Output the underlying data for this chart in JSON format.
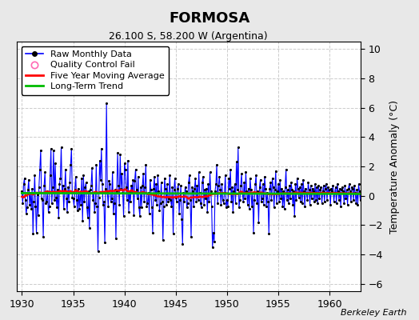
{
  "title": "FORMOSA",
  "subtitle": "26.100 S, 58.200 W (Argentina)",
  "ylabel": "Temperature Anomaly (°C)",
  "credit": "Berkeley Earth",
  "xlim": [
    1929.5,
    1963.0
  ],
  "ylim": [
    -6.5,
    10.5
  ],
  "yticks": [
    -6,
    -4,
    -2,
    0,
    2,
    4,
    6,
    8,
    10
  ],
  "xticks": [
    1930,
    1935,
    1940,
    1945,
    1950,
    1955,
    1960
  ],
  "fig_bg_color": "#e8e8e8",
  "plot_bg_color": "#ffffff",
  "grid_color": "#cccccc",
  "raw_color": "#0000ff",
  "ma_color": "#ff0000",
  "trend_color": "#00bb00",
  "qc_color": "#ff69b4",
  "raw_monthly": [
    0.3,
    -0.5,
    0.8,
    1.2,
    -0.3,
    -1.2,
    -0.8,
    0.4,
    1.1,
    -0.6,
    0.2,
    -0.9,
    0.5,
    -2.6,
    -0.4,
    1.4,
    -0.7,
    -2.5,
    0.1,
    -1.3,
    0.6,
    1.8,
    3.1,
    -0.2,
    -0.3,
    -2.8,
    0.7,
    1.6,
    -0.5,
    -0.4,
    0.3,
    -1.1,
    -0.7,
    1.4,
    3.2,
    -0.5,
    0.6,
    3.1,
    -0.3,
    2.2,
    -0.1,
    -0.8,
    0.4,
    -1.5,
    0.8,
    1.2,
    3.3,
    0.3,
    0.7,
    -0.9,
    0.5,
    1.8,
    -0.2,
    -1.1,
    0.6,
    -0.4,
    0.9,
    2.1,
    3.2,
    -0.1,
    -0.2,
    -0.7,
    0.4,
    1.3,
    -0.3,
    -1.0,
    0.5,
    -0.9,
    0.2,
    -0.6,
    1.2,
    -1.7,
    1.4,
    -0.4,
    0.6,
    0.9,
    -0.8,
    -1.5,
    0.3,
    -2.2,
    0.4,
    0.7,
    1.9,
    -0.3,
    0.2,
    -1.1,
    -0.5,
    2.1,
    -0.7,
    -3.8,
    -0.1,
    2.4,
    1.1,
    3.2,
    0.8,
    -0.6,
    -0.4,
    -3.2,
    0.5,
    6.3,
    0.2,
    -0.7,
    1.0,
    0.8,
    -0.4,
    -0.2,
    1.6,
    -1.2,
    -0.5,
    0.4,
    -2.9,
    0.3,
    2.9,
    0.7,
    -0.6,
    2.8,
    0.5,
    1.5,
    0.2,
    -1.4,
    2.2,
    1.8,
    0.6,
    -0.3,
    2.4,
    -1.1,
    0.3,
    -0.4,
    0.7,
    0.2,
    1.1,
    -1.3,
    1.0,
    1.8,
    0.4,
    -0.2,
    1.3,
    -0.8,
    -1.4,
    0.6,
    -0.8,
    0.7,
    1.5,
    -0.4,
    0.6,
    2.1,
    -0.7,
    -0.5,
    0.2,
    -1.2,
    1.1,
    0.4,
    -0.8,
    -2.5,
    0.5,
    1.3,
    -0.3,
    0.8,
    -0.6,
    1.4,
    0.3,
    -1.0,
    -0.5,
    0.9,
    -0.4,
    -3.0,
    -0.7,
    1.2,
    0.5,
    -0.6,
    0.8,
    -0.4,
    -0.2,
    1.4,
    -0.3,
    -0.7,
    0.6,
    -2.6,
    0.4,
    1.2,
    -0.1,
    -0.4,
    0.5,
    0.8,
    -1.2,
    -0.3,
    0.7,
    -1.6,
    -3.3,
    0.2,
    -0.4,
    0.6,
    0.3,
    -0.8,
    -0.5,
    0.9,
    1.4,
    -0.3,
    -2.8,
    0.6,
    0.3,
    -0.7,
    0.5,
    1.2,
    -0.4,
    0.7,
    -0.3,
    1.6,
    0.2,
    -0.5,
    -0.8,
    0.9,
    1.3,
    -0.6,
    0.4,
    -0.2,
    0.5,
    -1.1,
    0.8,
    -0.4,
    1.6,
    0.3,
    -0.7,
    -3.5,
    -2.5,
    -3.1,
    0.3,
    0.8,
    2.1,
    -0.5,
    0.7,
    1.3,
    0.4,
    -0.6,
    0.8,
    -0.3,
    -0.5,
    0.2,
    1.4,
    -0.8,
    -0.3,
    -0.7,
    1.2,
    0.5,
    1.8,
    -0.4,
    0.6,
    -1.1,
    0.3,
    0.8,
    -0.5,
    2.3,
    0.4,
    3.3,
    -0.8,
    -0.3,
    0.7,
    1.5,
    0.2,
    -0.4,
    0.9,
    -0.2,
    1.6,
    0.3,
    -0.6,
    0.5,
    -0.9,
    1.2,
    0.4,
    -0.7,
    0.2,
    -2.5,
    -0.3,
    0.8,
    1.4,
    -0.5,
    0.3,
    -1.8,
    0.6,
    1.1,
    -0.4,
    -0.2,
    0.8,
    -0.6,
    1.3,
    0.5,
    -0.7,
    0.2,
    -0.4,
    -2.6,
    0.5,
    0.9,
    -0.3,
    1.2,
    0.6,
    -0.8,
    0.4,
    1.7,
    -0.5,
    0.3,
    0.8,
    -0.4,
    1.1,
    -0.2,
    0.5,
    -0.7,
    0.3,
    -0.9,
    0.6,
    1.8,
    -0.3,
    0.4,
    -0.5,
    0.7,
    -0.2,
    0.9,
    0.4,
    -0.6,
    0.3,
    -1.4,
    0.8,
    -0.3,
    1.2,
    0.5,
    -0.1,
    0.6,
    -0.4,
    0.8,
    -0.5,
    1.1,
    0.3,
    -0.7,
    0.5,
    0.2,
    -0.3,
    0.9,
    0.4,
    -0.6,
    0.7,
    -0.2,
    0.5,
    0.3,
    -0.4,
    0.8,
    -0.3,
    0.6,
    -0.5,
    0.7,
    -0.2,
    0.4,
    0.6,
    -0.5,
    0.3,
    0.7,
    -0.4,
    0.5,
    0.8,
    -0.3,
    0.6,
    0.2,
    0.4,
    -0.6,
    0.5,
    0.3,
    0.7,
    -0.4,
    0.2,
    0.6,
    -0.5,
    0.8,
    0.3,
    -0.3,
    0.5,
    -0.7,
    0.4,
    0.6,
    0.3,
    -0.5,
    0.7,
    -0.2,
    0.4,
    -0.6,
    0.5,
    0.8,
    0.3,
    -0.4,
    0.6,
    0.5,
    -0.3,
    0.7,
    0.2,
    -0.5,
    0.4,
    -0.6,
    0.8,
    0.3,
    -0.3,
    0.5,
    0.4,
    -0.7,
    0.6,
    0.3,
    -0.5,
    0.7,
    -0.2,
    0.4,
    -0.6,
    0.5
  ],
  "start_year": 1930,
  "legend_fontsize": 8,
  "title_fontsize": 13,
  "subtitle_fontsize": 9,
  "tick_fontsize": 9,
  "ylabel_fontsize": 9
}
